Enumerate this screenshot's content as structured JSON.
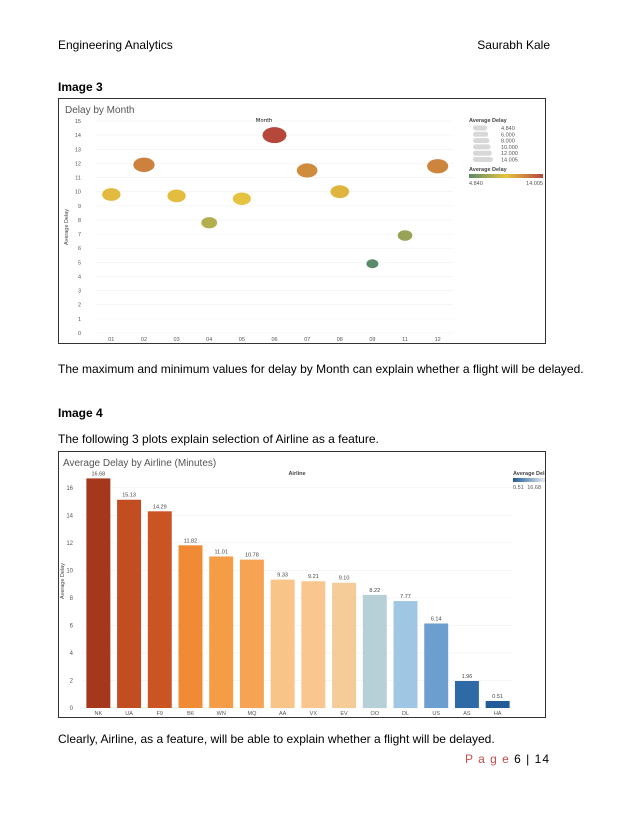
{
  "header": {
    "left": "Engineering Analytics",
    "right": "Saurabh Kale"
  },
  "image3": {
    "caption": "Image 3",
    "description": "The maximum and minimum values for delay by Month can explain whether a flight will be delayed."
  },
  "image4": {
    "caption": "Image 4",
    "intro": "The following 3 plots explain selection of Airline as a feature.",
    "conclusion": "Clearly, Airline, as a feature, will be able to explain whether a flight will be delayed."
  },
  "footer": {
    "page_word": "P a g e",
    "page_num": "6",
    "sep": "|",
    "total": "14"
  },
  "chart_data": [
    {
      "type": "scatter",
      "title": "Delay by Month",
      "header_label": "Month",
      "ylabel": "Average Delay",
      "ylim": [
        0,
        15
      ],
      "yticks": [
        0,
        1,
        2,
        3,
        4,
        5,
        6,
        7,
        8,
        9,
        10,
        11,
        12,
        13,
        14,
        15
      ],
      "categories": [
        "01",
        "02",
        "03",
        "04",
        "05",
        "06",
        "07",
        "08",
        "09",
        "11",
        "12"
      ],
      "values": [
        9.8,
        11.9,
        9.7,
        7.8,
        9.5,
        14.0,
        11.5,
        10.0,
        4.9,
        6.9,
        11.8
      ],
      "legend_size_title": "Average Delay",
      "legend_size_values": [
        "4.840",
        "6.000",
        "8.000",
        "10.000",
        "12.000",
        "14.005"
      ],
      "legend_color_title": "Average Delay",
      "legend_color_min": "4.840",
      "legend_color_max": "14.005",
      "color_min": "#5a8a6a",
      "color_mid": "#e6c440",
      "color_max": "#b5483a"
    },
    {
      "type": "bar",
      "title": "Average Delay by Airline (Minutes)",
      "header_label": "Airline",
      "ylabel": "Average Delay",
      "ylim": [
        0,
        17
      ],
      "yticks": [
        0,
        2,
        4,
        6,
        8,
        10,
        12,
        14,
        16
      ],
      "categories": [
        "NK",
        "UA",
        "F9",
        "B6",
        "WN",
        "MQ",
        "AA",
        "VX",
        "EV",
        "OO",
        "DL",
        "US",
        "AS",
        "HA"
      ],
      "values": [
        16.68,
        15.13,
        14.29,
        11.82,
        11.01,
        10.78,
        9.33,
        9.21,
        9.1,
        8.22,
        7.77,
        6.14,
        1.96,
        0.51
      ],
      "value_labels": [
        "16.68",
        "15.13",
        "14.29",
        "11.82",
        "11.01",
        "10.78",
        "9.33",
        "9.21",
        "9.10",
        "8.22",
        "7.77",
        "6.14",
        "1.96",
        "0.51"
      ],
      "colors": [
        "#a5381c",
        "#c24d21",
        "#cb5423",
        "#f08a35",
        "#f59c46",
        "#f6a454",
        "#f8c488",
        "#f8c68e",
        "#f5cb98",
        "#b7cfd6",
        "#9fc7e4",
        "#6c9fcf",
        "#2e6aa6",
        "#225b98"
      ],
      "legend_title": "Average Delay",
      "legend_min": "0.51",
      "legend_max": "16.68"
    }
  ]
}
